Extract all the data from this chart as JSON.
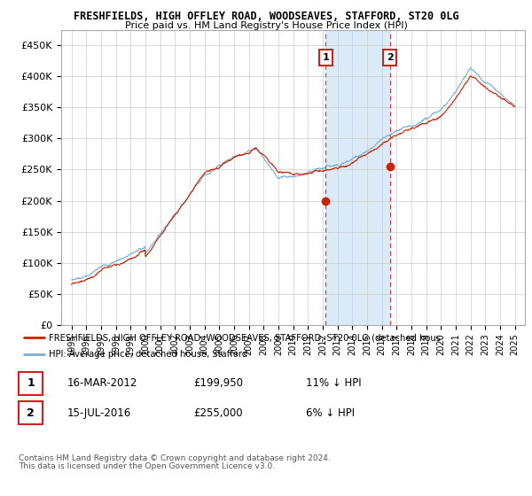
{
  "title1": "FRESHFIELDS, HIGH OFFLEY ROAD, WOODSEAVES, STAFFORD, ST20 0LG",
  "title2": "Price paid vs. HM Land Registry's House Price Index (HPI)",
  "ylim": [
    0,
    475000
  ],
  "yticks": [
    0,
    50000,
    100000,
    150000,
    200000,
    250000,
    300000,
    350000,
    400000,
    450000
  ],
  "ytick_labels": [
    "£0",
    "£50K",
    "£100K",
    "£150K",
    "£200K",
    "£250K",
    "£300K",
    "£350K",
    "£400K",
    "£450K"
  ],
  "hpi_color": "#7bafd4",
  "price_color": "#cc2200",
  "shaded_color": "#daeaf7",
  "vline_color": "#cc4444",
  "marker1_year": 2012.21,
  "marker1_price": 199950,
  "marker2_year": 2016.54,
  "marker2_price": 255000,
  "legend_label1": "FRESHFIELDS, HIGH OFFLEY ROAD, WOODSEAVES, STAFFORD, ST20 0LG (detached hous",
  "legend_label2": "HPI: Average price, detached house, Stafford",
  "table_row1": [
    "1",
    "16-MAR-2012",
    "£199,950",
    "11% ↓ HPI"
  ],
  "table_row2": [
    "2",
    "15-JUL-2016",
    "£255,000",
    "6% ↓ HPI"
  ],
  "footer1": "Contains HM Land Registry data © Crown copyright and database right 2024.",
  "footer2": "This data is licensed under the Open Government Licence v3.0.",
  "background_color": "#ffffff",
  "grid_color": "#cccccc"
}
